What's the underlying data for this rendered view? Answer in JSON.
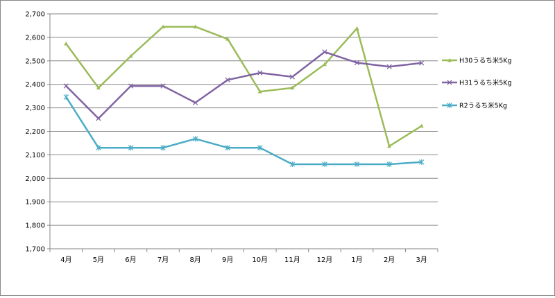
{
  "chart_data": {
    "type": "line",
    "categories": [
      "4月",
      "5月",
      "6月",
      "7月",
      "8月",
      "9月",
      "10月",
      "11月",
      "12月",
      "1月",
      "2月",
      "3月"
    ],
    "ylim": [
      1700,
      2700
    ],
    "yticks": [
      1700,
      1800,
      1900,
      2000,
      2100,
      2200,
      2300,
      2400,
      2500,
      2600,
      2700
    ],
    "ytick_labels": [
      "1,700",
      "1,800",
      "1,900",
      "2,000",
      "2,100",
      "2,200",
      "2,300",
      "2,400",
      "2,500",
      "2,600",
      "2,700"
    ],
    "grid": "horizontal",
    "legend_position": "right",
    "series": [
      {
        "name": "H30うるち米5Kg",
        "color": "#9BBB59",
        "marker": "triangle",
        "values": [
          2573,
          2385,
          2520,
          2645,
          2645,
          2593,
          2369,
          2385,
          2485,
          2638,
          2137,
          2223
        ]
      },
      {
        "name": "H31うるち米5Kg",
        "color": "#8064A2",
        "marker": "x",
        "values": [
          2393,
          2255,
          2393,
          2393,
          2322,
          2419,
          2449,
          2432,
          2538,
          2492,
          2475,
          2491
        ]
      },
      {
        "name": "R2うるち米5Kg",
        "color": "#4BACC6",
        "marker": "star",
        "values": [
          2346,
          2130,
          2130,
          2130,
          2168,
          2130,
          2130,
          2060,
          2060,
          2060,
          2060,
          2069
        ]
      }
    ]
  }
}
